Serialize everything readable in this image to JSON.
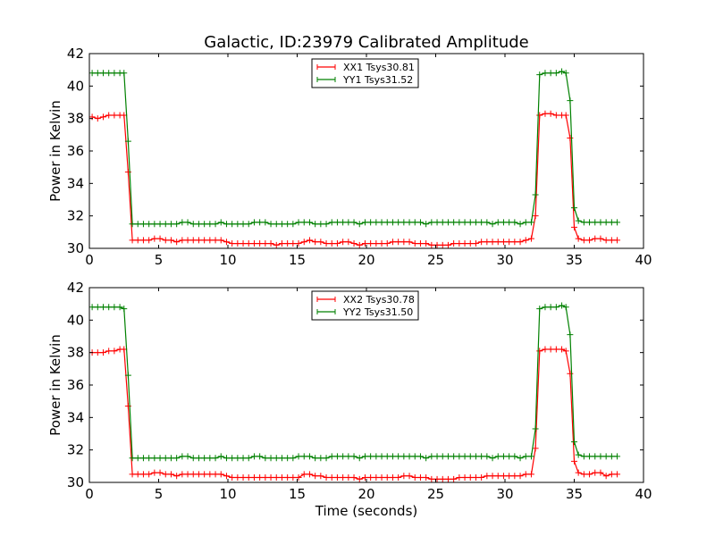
{
  "title": "Galactic, ID:23979 Calibrated Amplitude",
  "chart_data": [
    {
      "type": "line",
      "ylabel": "Power in Kelvin",
      "xlabel": "",
      "xlim": [
        0,
        40
      ],
      "ylim": [
        30,
        42
      ],
      "xticks": [
        "0",
        "5",
        "10",
        "15",
        "20",
        "25",
        "30",
        "35",
        "40"
      ],
      "yticks": [
        "30",
        "32",
        "34",
        "36",
        "38",
        "40",
        "42"
      ],
      "legend_position": "top-center",
      "grid": false,
      "x": [
        0.2,
        0.6,
        1.0,
        1.4,
        1.8,
        2.2,
        2.5,
        2.8,
        3.1,
        3.5,
        3.9,
        4.3,
        4.7,
        5.1,
        5.5,
        5.9,
        6.3,
        6.7,
        7.1,
        7.5,
        7.9,
        8.3,
        8.7,
        9.1,
        9.5,
        9.9,
        10.3,
        10.7,
        11.1,
        11.5,
        11.9,
        12.3,
        12.7,
        13.1,
        13.5,
        13.9,
        14.3,
        14.7,
        15.1,
        15.5,
        15.9,
        16.3,
        16.7,
        17.1,
        17.5,
        17.9,
        18.3,
        18.7,
        19.1,
        19.5,
        19.9,
        20.3,
        20.7,
        21.1,
        21.5,
        21.9,
        22.3,
        22.7,
        23.1,
        23.5,
        23.9,
        24.3,
        24.7,
        25.1,
        25.5,
        25.9,
        26.3,
        26.7,
        27.1,
        27.5,
        27.9,
        28.3,
        28.7,
        29.1,
        29.5,
        29.9,
        30.3,
        30.7,
        31.1,
        31.5,
        31.9,
        32.2,
        32.5,
        32.9,
        33.3,
        33.7,
        34.1,
        34.4,
        34.7,
        35.0,
        35.3,
        35.7,
        36.1,
        36.5,
        36.9,
        37.3,
        37.7,
        38.1
      ],
      "series": [
        {
          "name": "XX1 Tsys30.81",
          "color": "#ff0000",
          "values": [
            38.1,
            38.0,
            38.1,
            38.2,
            38.2,
            38.2,
            38.2,
            34.7,
            30.5,
            30.5,
            30.5,
            30.5,
            30.6,
            30.6,
            30.5,
            30.5,
            30.4,
            30.5,
            30.5,
            30.5,
            30.5,
            30.5,
            30.5,
            30.5,
            30.5,
            30.4,
            30.3,
            30.3,
            30.3,
            30.3,
            30.3,
            30.3,
            30.3,
            30.3,
            30.2,
            30.3,
            30.3,
            30.3,
            30.3,
            30.4,
            30.5,
            30.4,
            30.4,
            30.3,
            30.3,
            30.3,
            30.4,
            30.4,
            30.3,
            30.2,
            30.3,
            30.3,
            30.3,
            30.3,
            30.3,
            30.4,
            30.4,
            30.4,
            30.4,
            30.3,
            30.3,
            30.3,
            30.2,
            30.2,
            30.2,
            30.2,
            30.3,
            30.3,
            30.3,
            30.3,
            30.3,
            30.4,
            30.4,
            30.4,
            30.4,
            30.4,
            30.4,
            30.4,
            30.4,
            30.5,
            30.6,
            32.0,
            38.2,
            38.3,
            38.3,
            38.2,
            38.2,
            38.2,
            36.8,
            31.3,
            30.6,
            30.5,
            30.5,
            30.6,
            30.6,
            30.5,
            30.5,
            30.5
          ]
        },
        {
          "name": "YY1 Tsys31.52",
          "color": "#008000",
          "values": [
            40.8,
            40.8,
            40.8,
            40.8,
            40.8,
            40.8,
            40.8,
            36.6,
            31.5,
            31.5,
            31.5,
            31.5,
            31.5,
            31.5,
            31.5,
            31.5,
            31.5,
            31.6,
            31.6,
            31.5,
            31.5,
            31.5,
            31.5,
            31.5,
            31.6,
            31.5,
            31.5,
            31.5,
            31.5,
            31.5,
            31.6,
            31.6,
            31.6,
            31.5,
            31.5,
            31.5,
            31.5,
            31.5,
            31.6,
            31.6,
            31.6,
            31.5,
            31.5,
            31.5,
            31.6,
            31.6,
            31.6,
            31.6,
            31.6,
            31.5,
            31.6,
            31.6,
            31.6,
            31.6,
            31.6,
            31.6,
            31.6,
            31.6,
            31.6,
            31.6,
            31.6,
            31.5,
            31.6,
            31.6,
            31.6,
            31.6,
            31.6,
            31.6,
            31.6,
            31.6,
            31.6,
            31.6,
            31.6,
            31.5,
            31.6,
            31.6,
            31.6,
            31.6,
            31.5,
            31.6,
            31.6,
            33.3,
            40.7,
            40.8,
            40.8,
            40.8,
            40.9,
            40.8,
            39.1,
            32.5,
            31.7,
            31.6,
            31.6,
            31.6,
            31.6,
            31.6,
            31.6,
            31.6
          ]
        }
      ]
    },
    {
      "type": "line",
      "ylabel": "Power in Kelvin",
      "xlabel": "Time (seconds)",
      "xlim": [
        0,
        40
      ],
      "ylim": [
        30,
        42
      ],
      "xticks": [
        "0",
        "5",
        "10",
        "15",
        "20",
        "25",
        "30",
        "35",
        "40"
      ],
      "yticks": [
        "30",
        "32",
        "34",
        "36",
        "38",
        "40",
        "42"
      ],
      "legend_position": "top-center",
      "grid": false,
      "x": [
        0.2,
        0.6,
        1.0,
        1.4,
        1.8,
        2.2,
        2.5,
        2.8,
        3.1,
        3.5,
        3.9,
        4.3,
        4.7,
        5.1,
        5.5,
        5.9,
        6.3,
        6.7,
        7.1,
        7.5,
        7.9,
        8.3,
        8.7,
        9.1,
        9.5,
        9.9,
        10.3,
        10.7,
        11.1,
        11.5,
        11.9,
        12.3,
        12.7,
        13.1,
        13.5,
        13.9,
        14.3,
        14.7,
        15.1,
        15.5,
        15.9,
        16.3,
        16.7,
        17.1,
        17.5,
        17.9,
        18.3,
        18.7,
        19.1,
        19.5,
        19.9,
        20.3,
        20.7,
        21.1,
        21.5,
        21.9,
        22.3,
        22.7,
        23.1,
        23.5,
        23.9,
        24.3,
        24.7,
        25.1,
        25.5,
        25.9,
        26.3,
        26.7,
        27.1,
        27.5,
        27.9,
        28.3,
        28.7,
        29.1,
        29.5,
        29.9,
        30.3,
        30.7,
        31.1,
        31.5,
        31.9,
        32.2,
        32.5,
        32.9,
        33.3,
        33.7,
        34.1,
        34.4,
        34.7,
        35.0,
        35.3,
        35.7,
        36.1,
        36.5,
        36.9,
        37.3,
        37.7,
        38.1
      ],
      "series": [
        {
          "name": "XX2 Tsys30.78",
          "color": "#ff0000",
          "values": [
            38.0,
            38.0,
            38.0,
            38.1,
            38.1,
            38.2,
            38.2,
            34.7,
            30.5,
            30.5,
            30.5,
            30.5,
            30.6,
            30.6,
            30.5,
            30.5,
            30.4,
            30.5,
            30.5,
            30.5,
            30.5,
            30.5,
            30.5,
            30.5,
            30.5,
            30.4,
            30.3,
            30.3,
            30.3,
            30.3,
            30.3,
            30.3,
            30.3,
            30.3,
            30.3,
            30.3,
            30.3,
            30.3,
            30.3,
            30.5,
            30.5,
            30.4,
            30.4,
            30.3,
            30.3,
            30.3,
            30.3,
            30.3,
            30.3,
            30.2,
            30.3,
            30.3,
            30.3,
            30.3,
            30.3,
            30.3,
            30.3,
            30.4,
            30.4,
            30.3,
            30.3,
            30.3,
            30.2,
            30.2,
            30.2,
            30.2,
            30.2,
            30.3,
            30.3,
            30.3,
            30.3,
            30.3,
            30.4,
            30.4,
            30.4,
            30.4,
            30.4,
            30.4,
            30.4,
            30.5,
            30.5,
            32.1,
            38.1,
            38.2,
            38.2,
            38.2,
            38.2,
            38.1,
            36.7,
            31.3,
            30.6,
            30.5,
            30.5,
            30.6,
            30.6,
            30.4,
            30.5,
            30.5
          ]
        },
        {
          "name": "YY2 Tsys31.50",
          "color": "#008000",
          "values": [
            40.8,
            40.8,
            40.8,
            40.8,
            40.8,
            40.8,
            40.7,
            36.6,
            31.5,
            31.5,
            31.5,
            31.5,
            31.5,
            31.5,
            31.5,
            31.5,
            31.5,
            31.6,
            31.6,
            31.5,
            31.5,
            31.5,
            31.5,
            31.5,
            31.6,
            31.5,
            31.5,
            31.5,
            31.5,
            31.5,
            31.6,
            31.6,
            31.5,
            31.5,
            31.5,
            31.5,
            31.5,
            31.5,
            31.6,
            31.6,
            31.6,
            31.5,
            31.5,
            31.5,
            31.6,
            31.6,
            31.6,
            31.6,
            31.6,
            31.5,
            31.6,
            31.6,
            31.6,
            31.6,
            31.6,
            31.6,
            31.6,
            31.6,
            31.6,
            31.6,
            31.6,
            31.5,
            31.6,
            31.6,
            31.6,
            31.6,
            31.6,
            31.6,
            31.6,
            31.6,
            31.6,
            31.6,
            31.6,
            31.5,
            31.6,
            31.6,
            31.6,
            31.6,
            31.5,
            31.6,
            31.6,
            33.3,
            40.7,
            40.8,
            40.8,
            40.8,
            40.9,
            40.8,
            39.1,
            32.5,
            31.7,
            31.6,
            31.6,
            31.6,
            31.6,
            31.6,
            31.6,
            31.6
          ]
        }
      ]
    }
  ]
}
